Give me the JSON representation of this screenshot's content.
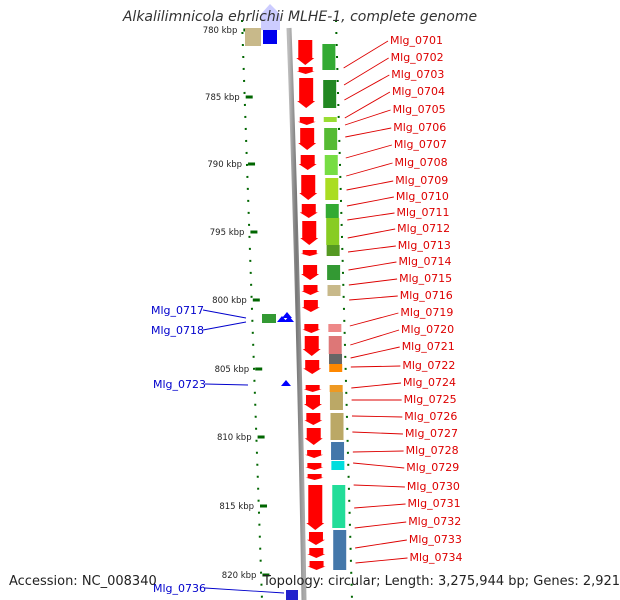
{
  "title": "Alkalilimnicola ehrlichii MLHE-1, complete genome",
  "accession": "Accession: NC_008340",
  "topology": "Topology: circular; Length: 3,275,944 bp; Genes: 2,921",
  "ruler_labels": [
    "780 kbp",
    "785 kbp",
    "790 kbp",
    "795 kbp",
    "800 kbp",
    "805 kbp",
    "810 kbp",
    "815 kbp",
    "820 kbp"
  ],
  "right_labels": [
    "Mlg_0701",
    "Mlg_0702",
    "Mlg_0703",
    "Mlg_0704",
    "Mlg_0705",
    "Mlg_0706",
    "Mlg_0707",
    "Mlg_0708",
    "Mlg_0709",
    "Mlg_0710",
    "Mlg_0711",
    "Mlg_0712",
    "Mlg_0713",
    "Mlg_0714",
    "Mlg_0715",
    "Mlg_0716",
    "Mlg_0719",
    "Mlg_0720",
    "Mlg_0721",
    "Mlg_0722",
    "Mlg_0724",
    "Mlg_0725",
    "Mlg_0726",
    "Mlg_0727",
    "Mlg_0728",
    "Mlg_0729",
    "Mlg_0730",
    "Mlg_0731",
    "Mlg_0732",
    "Mlg_0733",
    "Mlg_0734"
  ],
  "left_labels": [
    "Mlg_0717",
    "Mlg_0718",
    "Mlg_0723",
    "Mlg_0736"
  ],
  "colors": {
    "forward_arrow": "#ff0000",
    "reverse_arrow": "#0000ff",
    "backbone": "#888888",
    "ruler_tick": "#006600",
    "right_label": "#dd0000",
    "left_label": "#0000cc"
  }
}
